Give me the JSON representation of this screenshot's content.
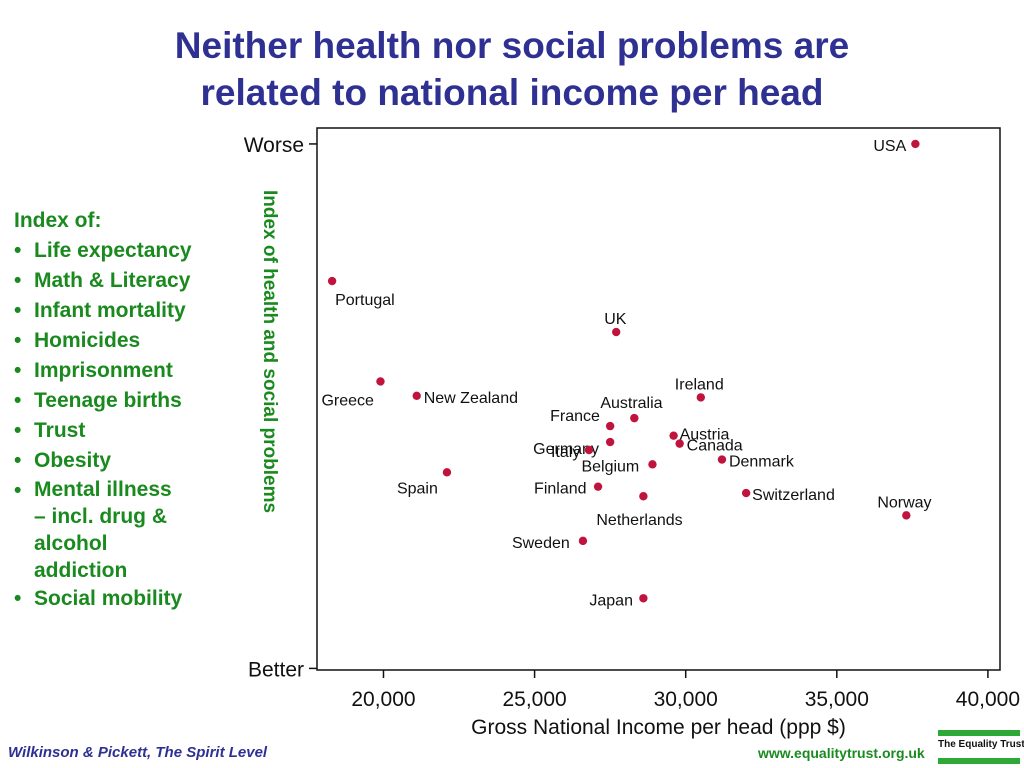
{
  "title_lines": [
    "Neither health nor social problems are",
    "related to national income per head"
  ],
  "sidebar": {
    "heading": "Index of:",
    "items": [
      "Life expectancy",
      "Math & Literacy",
      "Infant mortality",
      "Homicides",
      "Imprisonment",
      "Teenage births",
      "Trust",
      "Obesity",
      "Mental illness\n– incl. drug &\n   alcohol\naddiction",
      "Social mobility"
    ],
    "bullet": "•"
  },
  "footer": {
    "citation": "Wilkinson & Pickett, The Spirit Level",
    "url": "www.equalitytrust.org.uk",
    "logo_text": "The Equality Trust"
  },
  "colors": {
    "title": "#2e3192",
    "sidebar_text": "#1a8a1f",
    "point": "#c0143c",
    "logo_green": "#2ea836"
  },
  "chart_data": {
    "type": "scatter",
    "xlabel": "Gross National Income per head (ppp $)",
    "ylabel": "Index of health and social problems",
    "xlim": [
      17800,
      40400
    ],
    "x_ticks": [
      20000,
      25000,
      30000,
      35000,
      40000
    ],
    "x_tick_labels": [
      "20,000",
      "25,000",
      "30,000",
      "35,000",
      "40,000"
    ],
    "ylim": [
      -1.16,
      2.24
    ],
    "y_tick_labels": {
      "top": "Worse",
      "bottom": "Better"
    },
    "y_ticks": [
      2.14,
      -1.15
    ],
    "grid": false,
    "points": [
      {
        "country": "USA",
        "x": 37600,
        "y": 2.14
      },
      {
        "country": "Portugal",
        "x": 18300,
        "y": 1.28
      },
      {
        "country": "UK",
        "x": 27700,
        "y": 0.96
      },
      {
        "country": "Greece",
        "x": 19900,
        "y": 0.65
      },
      {
        "country": "New Zealand",
        "x": 21100,
        "y": 0.56
      },
      {
        "country": "Ireland",
        "x": 30500,
        "y": 0.55
      },
      {
        "country": "Australia",
        "x": 28300,
        "y": 0.42
      },
      {
        "country": "France",
        "x": 27500,
        "y": 0.37
      },
      {
        "country": "Austria",
        "x": 29600,
        "y": 0.31
      },
      {
        "country": "Germany",
        "x": 27500,
        "y": 0.27
      },
      {
        "country": "Canada",
        "x": 29800,
        "y": 0.26
      },
      {
        "country": "Italy",
        "x": 26800,
        "y": 0.22
      },
      {
        "country": "Denmark",
        "x": 31200,
        "y": 0.16
      },
      {
        "country": "Belgium",
        "x": 28900,
        "y": 0.13
      },
      {
        "country": "Spain",
        "x": 22100,
        "y": 0.08
      },
      {
        "country": "Finland",
        "x": 27100,
        "y": -0.01
      },
      {
        "country": "Switzerland",
        "x": 32000,
        "y": -0.05
      },
      {
        "country": "Netherlands",
        "x": 28600,
        "y": -0.07
      },
      {
        "country": "Norway",
        "x": 37300,
        "y": -0.19
      },
      {
        "country": "Sweden",
        "x": 26600,
        "y": -0.35
      },
      {
        "country": "Japan",
        "x": 28600,
        "y": -0.71
      }
    ]
  }
}
